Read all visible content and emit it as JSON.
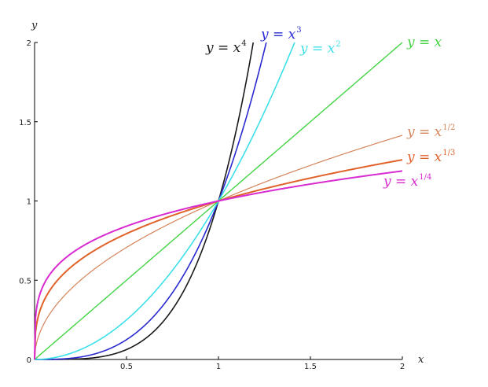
{
  "chart_data": {
    "type": "line",
    "title": "",
    "xlabel": "x",
    "ylabel": "y",
    "xlim": [
      0,
      2
    ],
    "ylim": [
      0,
      2
    ],
    "x_ticks": [
      "0.5",
      "1",
      "1.5",
      "2"
    ],
    "y_ticks": [
      "0",
      "0.5",
      "1",
      "1.5",
      "2"
    ],
    "grid": false,
    "legend": "none",
    "series": [
      {
        "base": "y = x",
        "exp_text": "4",
        "exponent": 4,
        "color": "#1a1a1a",
        "x_max": 1.1892,
        "stroke": 1.6
      },
      {
        "base": "y = x",
        "exp_text": "3",
        "exponent": 3,
        "color": "#2a2ad0",
        "x_max": 1.2599,
        "stroke": 1.6
      },
      {
        "base": "y = x",
        "exp_text": "2",
        "exponent": 2,
        "color": "#3de0e8",
        "x_max": 1.4142,
        "stroke": 1.6
      },
      {
        "base": "y = x",
        "exp_text": "",
        "exponent": 1,
        "color": "#44d444",
        "x_max": 2,
        "stroke": 1.4
      },
      {
        "base": "y = x",
        "exp_text": "1/2",
        "exponent": 0.5,
        "color": "#d4845a",
        "x_max": 2,
        "stroke": 1.2
      },
      {
        "base": "y = x",
        "exp_text": "1/3",
        "exponent": 0.3333,
        "color": "#e0622a",
        "x_max": 2,
        "stroke": 2.0
      },
      {
        "base": "y = x",
        "exp_text": "1/4",
        "exponent": 0.25,
        "color": "#d82bd0",
        "x_max": 2,
        "stroke": 2.0
      }
    ]
  }
}
